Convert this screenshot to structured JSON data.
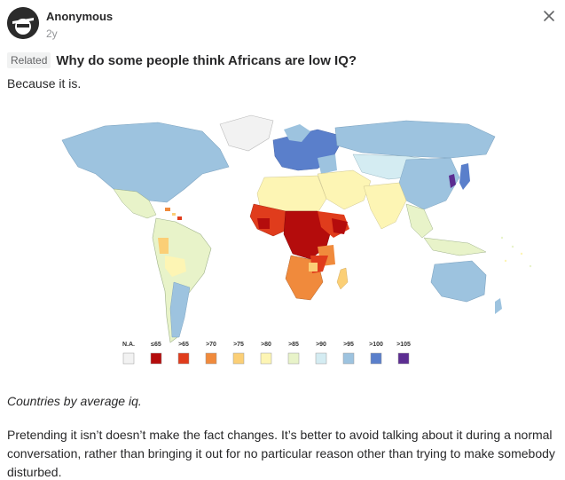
{
  "post": {
    "author": "Anonymous",
    "time": "2y",
    "related_label": "Related",
    "question": "Why do some people think Africans are low IQ?",
    "lead": "Because it is.",
    "caption": "Countries by average iq.",
    "body": "Pretending it isn’t doesn’t make the fact changes. It’s better to avoid talking about it during a normal conversation, rather than bringing it out for no particular reason other than trying to make somebody disturbed."
  },
  "icons": {
    "avatar": "anonymous-avatar-icon",
    "close": "close-icon"
  },
  "map": {
    "legend": [
      {
        "label": "N.A.",
        "color": "#f2f2f2"
      },
      {
        "label": "≤65",
        "color": "#b40c0c"
      },
      {
        "label": ">65",
        "color": "#e03c1c"
      },
      {
        "label": ">70",
        "color": "#f08a3c"
      },
      {
        "label": ">75",
        "color": "#fbcf76"
      },
      {
        "label": ">80",
        "color": "#fdf5b4"
      },
      {
        "label": ">85",
        "color": "#e8f3c9"
      },
      {
        "label": ">90",
        "color": "#d4ecf2"
      },
      {
        "label": ">95",
        "color": "#9dc3df"
      },
      {
        "label": ">100",
        "color": "#5a7fcb"
      },
      {
        "label": ">105",
        "color": "#5c2d91"
      }
    ]
  }
}
